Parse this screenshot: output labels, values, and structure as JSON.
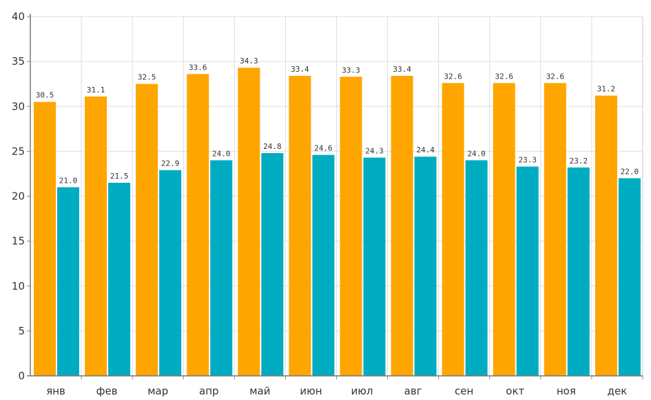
{
  "chart_data": {
    "type": "bar",
    "categories": [
      "янв",
      "фев",
      "мар",
      "апр",
      "май",
      "июн",
      "июл",
      "авг",
      "сен",
      "окт",
      "ноя",
      "дек"
    ],
    "series": [
      {
        "values": [
          30.5,
          31.1,
          32.5,
          33.6,
          34.3,
          33.4,
          33.3,
          33.4,
          32.6,
          32.6,
          32.6,
          31.2
        ],
        "color": "#ffa500"
      },
      {
        "values": [
          21.0,
          21.5,
          22.9,
          24.0,
          24.8,
          24.6,
          24.3,
          24.4,
          24.0,
          23.3,
          23.2,
          22.0
        ],
        "color": "#00acc1"
      }
    ],
    "value_labels": {
      "series_0": [
        "30.5",
        "31.1",
        "32.5",
        "33.6",
        "34.3",
        "33.4",
        "33.3",
        "33.4",
        "32.6",
        "32.6",
        "32.6",
        "31.2"
      ],
      "series_1": [
        "21.0",
        "21.5",
        "22.9",
        "24.0",
        "24.8",
        "24.6",
        "24.3",
        "24.4",
        "24.0",
        "23.3",
        "23.2",
        "22.0"
      ]
    },
    "title": "",
    "xlabel": "",
    "ylabel": "",
    "ylim": [
      0,
      40
    ],
    "yticks": [
      "0",
      "5",
      "10",
      "15",
      "20",
      "25",
      "30",
      "35",
      "40"
    ],
    "grid": true,
    "legend": "none"
  }
}
